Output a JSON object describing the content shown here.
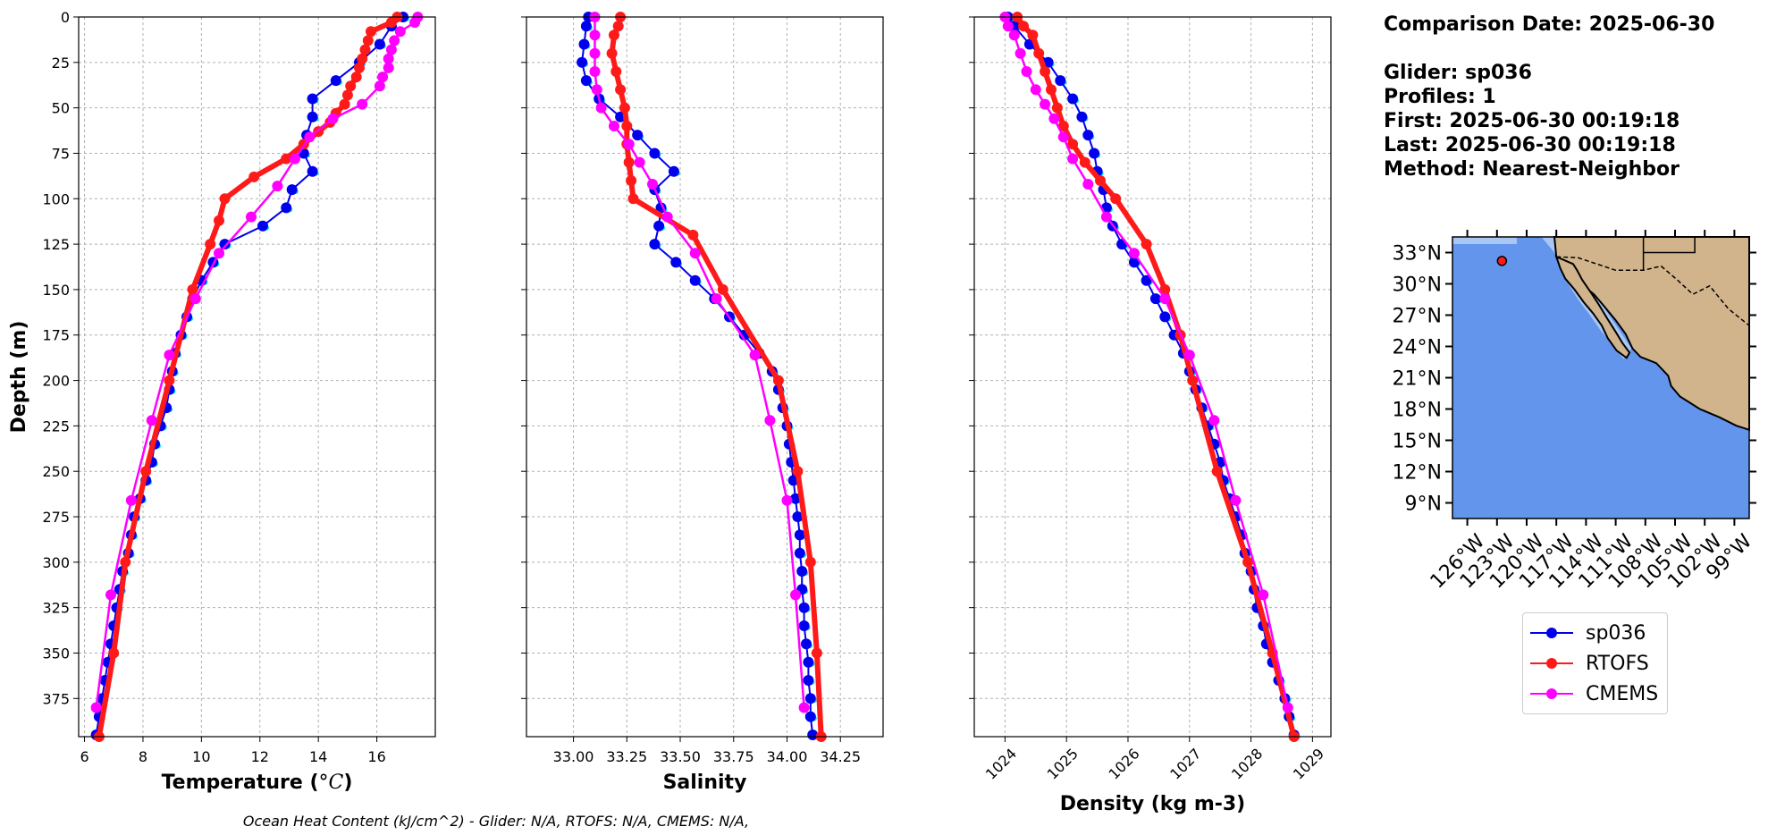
{
  "chart_data": [
    {
      "type": "line",
      "xlabel": "Temperature (°C)",
      "ylabel": "Depth (m)",
      "xlim": [
        5.8,
        18.0
      ],
      "ylim": [
        396,
        0
      ],
      "xticks": [
        6,
        8,
        10,
        12,
        14,
        16
      ],
      "yticks": [
        0,
        25,
        50,
        75,
        100,
        125,
        150,
        175,
        200,
        225,
        250,
        275,
        300,
        325,
        350,
        375
      ],
      "grid": true,
      "series": [
        {
          "name": "sp036",
          "depth": [
            0,
            5,
            15,
            25,
            35,
            45,
            55,
            65,
            75,
            85,
            95,
            105,
            115,
            125,
            135,
            145,
            155,
            165,
            175,
            185,
            195,
            205,
            215,
            225,
            235,
            245,
            255,
            265,
            275,
            285,
            295,
            305,
            315,
            325,
            335,
            345,
            355,
            365,
            375,
            385,
            395
          ],
          "values": [
            16.9,
            16.5,
            16.1,
            15.4,
            14.6,
            13.8,
            13.8,
            13.6,
            13.5,
            13.8,
            13.1,
            12.9,
            12.1,
            10.8,
            10.4,
            10.0,
            9.7,
            9.5,
            9.3,
            9.1,
            9.0,
            8.9,
            8.8,
            8.6,
            8.4,
            8.3,
            8.1,
            7.9,
            7.7,
            7.6,
            7.5,
            7.3,
            7.2,
            7.1,
            7.0,
            6.9,
            6.8,
            6.7,
            6.6,
            6.5,
            6.4
          ]
        },
        {
          "name": "RTOFS",
          "depth": [
            0,
            3,
            8,
            13,
            18,
            23,
            28,
            33,
            38,
            43,
            48,
            53,
            58,
            63,
            70,
            78,
            88,
            100,
            112,
            125,
            150,
            200,
            250,
            300,
            350,
            396
          ],
          "values": [
            16.7,
            16.5,
            15.8,
            15.7,
            15.6,
            15.5,
            15.4,
            15.3,
            15.1,
            15.0,
            14.9,
            14.6,
            14.4,
            14.0,
            13.5,
            12.9,
            11.8,
            10.8,
            10.6,
            10.3,
            9.7,
            8.9,
            8.1,
            7.4,
            7.0,
            6.5
          ]
        },
        {
          "name": "CMEMS",
          "depth": [
            0,
            3,
            8,
            13,
            18,
            23,
            28,
            33,
            38,
            48,
            56,
            66,
            78,
            93,
            110,
            130,
            155,
            186,
            222,
            266,
            318,
            380
          ],
          "values": [
            17.4,
            17.3,
            16.8,
            16.6,
            16.5,
            16.4,
            16.4,
            16.2,
            16.1,
            15.5,
            14.5,
            13.7,
            13.2,
            12.6,
            11.7,
            10.6,
            9.8,
            8.9,
            8.3,
            7.6,
            6.9,
            6.4
          ]
        }
      ]
    },
    {
      "type": "line",
      "xlabel": "Salinity",
      "ylabel": "",
      "xlim": [
        32.78,
        34.45
      ],
      "ylim": [
        396,
        0
      ],
      "xticks": [
        33.0,
        33.25,
        33.5,
        33.75,
        34.0,
        34.25
      ],
      "xtick_labels": [
        "33.00",
        "33.25",
        "33.50",
        "33.75",
        "34.00",
        "34.25"
      ],
      "grid": true,
      "series": [
        {
          "name": "sp036",
          "depth": [
            0,
            5,
            15,
            25,
            35,
            45,
            55,
            65,
            75,
            85,
            95,
            105,
            115,
            125,
            135,
            145,
            155,
            165,
            175,
            185,
            195,
            205,
            215,
            225,
            235,
            245,
            255,
            265,
            275,
            285,
            295,
            305,
            315,
            325,
            335,
            345,
            355,
            365,
            375,
            385,
            395
          ],
          "values": [
            33.07,
            33.06,
            33.05,
            33.04,
            33.06,
            33.12,
            33.22,
            33.3,
            33.38,
            33.47,
            33.38,
            33.41,
            33.4,
            33.38,
            33.48,
            33.57,
            33.66,
            33.73,
            33.8,
            33.87,
            33.93,
            33.96,
            33.98,
            34.0,
            34.01,
            34.02,
            34.03,
            34.04,
            34.05,
            34.06,
            34.06,
            34.07,
            34.07,
            34.08,
            34.08,
            34.09,
            34.1,
            34.1,
            34.11,
            34.11,
            34.12
          ]
        },
        {
          "name": "RTOFS",
          "depth": [
            0,
            5,
            10,
            20,
            30,
            40,
            50,
            60,
            70,
            80,
            90,
            100,
            120,
            150,
            200,
            250,
            300,
            350,
            396
          ],
          "values": [
            33.22,
            33.21,
            33.19,
            33.18,
            33.2,
            33.22,
            33.24,
            33.25,
            33.25,
            33.26,
            33.27,
            33.28,
            33.56,
            33.7,
            33.96,
            34.05,
            34.11,
            34.14,
            34.16
          ]
        },
        {
          "name": "CMEMS",
          "depth": [
            0,
            10,
            20,
            30,
            40,
            50,
            60,
            70,
            80,
            92,
            110,
            130,
            155,
            186,
            222,
            266,
            318,
            380
          ],
          "values": [
            33.1,
            33.1,
            33.1,
            33.1,
            33.11,
            33.13,
            33.19,
            33.26,
            33.31,
            33.37,
            33.44,
            33.57,
            33.67,
            33.85,
            33.92,
            34.0,
            34.04,
            34.08
          ]
        }
      ]
    },
    {
      "type": "line",
      "xlabel": "Density (kg m-3)",
      "ylabel": "",
      "xlim": [
        1023.5,
        1029.3
      ],
      "ylim": [
        396,
        0
      ],
      "xticks": [
        1024,
        1025,
        1026,
        1027,
        1028,
        1029
      ],
      "grid": true,
      "series": [
        {
          "name": "sp036",
          "depth": [
            0,
            5,
            15,
            25,
            35,
            45,
            55,
            65,
            75,
            85,
            95,
            105,
            115,
            125,
            135,
            145,
            155,
            165,
            175,
            185,
            195,
            205,
            215,
            225,
            235,
            245,
            255,
            265,
            275,
            285,
            295,
            305,
            315,
            325,
            335,
            345,
            355,
            365,
            375,
            385,
            395
          ],
          "values": [
            1024.05,
            1024.15,
            1024.4,
            1024.7,
            1024.9,
            1025.1,
            1025.25,
            1025.35,
            1025.45,
            1025.5,
            1025.6,
            1025.65,
            1025.75,
            1025.9,
            1026.1,
            1026.3,
            1026.45,
            1026.6,
            1026.75,
            1026.9,
            1027.0,
            1027.1,
            1027.2,
            1027.3,
            1027.4,
            1027.5,
            1027.55,
            1027.65,
            1027.75,
            1027.85,
            1027.9,
            1028.0,
            1028.05,
            1028.1,
            1028.2,
            1028.25,
            1028.35,
            1028.45,
            1028.55,
            1028.62,
            1028.7
          ]
        },
        {
          "name": "RTOFS",
          "depth": [
            0,
            5,
            10,
            20,
            30,
            40,
            50,
            60,
            70,
            80,
            90,
            100,
            125,
            150,
            175,
            200,
            250,
            300,
            350,
            396
          ],
          "values": [
            1024.2,
            1024.3,
            1024.45,
            1024.55,
            1024.65,
            1024.75,
            1024.85,
            1024.95,
            1025.1,
            1025.3,
            1025.55,
            1025.8,
            1026.3,
            1026.6,
            1026.85,
            1027.05,
            1027.45,
            1027.95,
            1028.35,
            1028.7
          ]
        },
        {
          "name": "CMEMS",
          "depth": [
            0,
            5,
            10,
            20,
            30,
            40,
            48,
            56,
            66,
            78,
            92,
            110,
            130,
            155,
            186,
            222,
            266,
            318,
            380
          ],
          "values": [
            1024.0,
            1024.05,
            1024.15,
            1024.25,
            1024.35,
            1024.5,
            1024.65,
            1024.8,
            1024.95,
            1025.1,
            1025.35,
            1025.65,
            1026.1,
            1026.6,
            1027.0,
            1027.4,
            1027.75,
            1028.2,
            1028.6
          ]
        }
      ]
    }
  ],
  "series_colors": {
    "sp036": "#0000ee",
    "RTOFS": "#ff1a1a",
    "CMEMS": "#ff00ff",
    "glider_light": "#00e5ff"
  },
  "info": {
    "comparison_date": "Comparison Date: 2025-06-30",
    "glider": "Glider: sp036",
    "profiles": "Profiles: 1",
    "first": "First: 2025-06-30 00:19:18",
    "last": "Last: 2025-06-30 00:19:18",
    "method": "Method: Nearest-Neighbor"
  },
  "map": {
    "lat_labels": [
      "33°N",
      "30°N",
      "27°N",
      "24°N",
      "21°N",
      "18°N",
      "15°N",
      "12°N",
      "9°N"
    ],
    "lon_labels": [
      "126°W",
      "123°W",
      "120°W",
      "117°W",
      "114°W",
      "111°W",
      "108°W",
      "105°W",
      "102°W",
      "99°W"
    ],
    "ocean_color": "#6495ed",
    "land_color": "#d2b48c",
    "glider_position": {
      "lon": -122.5,
      "lat": 32.2
    }
  },
  "legend": {
    "items": [
      "sp036",
      "RTOFS",
      "CMEMS"
    ]
  },
  "footer": "Ocean Heat Content (kJ/cm^2) - Glider: N/A,  RTOFS: N/A,  CMEMS: N/A,"
}
